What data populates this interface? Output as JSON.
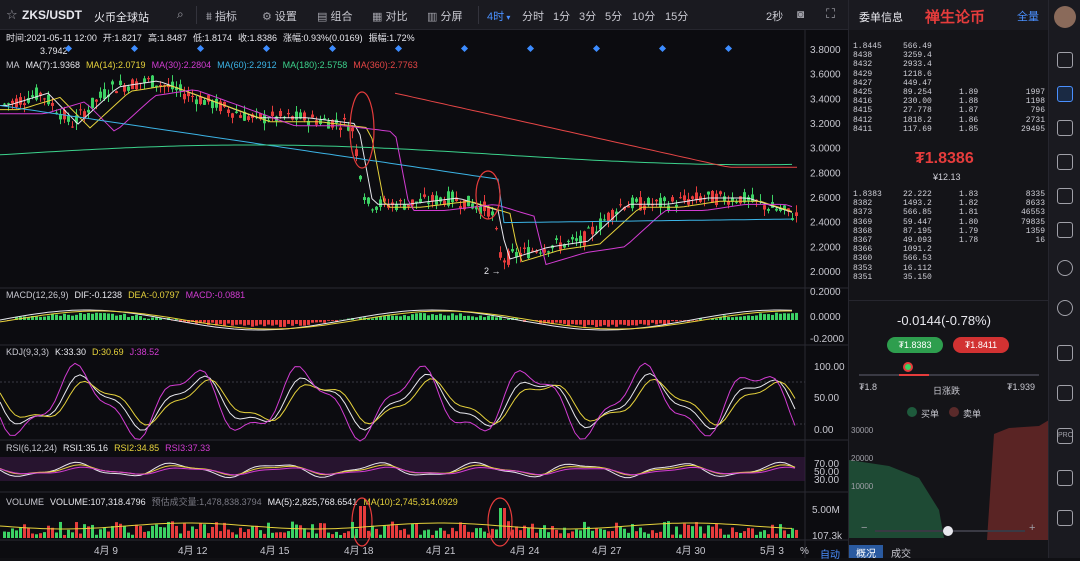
{
  "header": {
    "symbol": "ZKS/USDT",
    "exchange": "火币全球站",
    "tools": [
      "指标",
      "设置",
      "组合",
      "对比",
      "分屏"
    ],
    "timeframes": [
      "4时",
      "分时",
      "1分",
      "3分",
      "5分",
      "10分",
      "15分"
    ],
    "active_timeframe": "4时",
    "refresh": "2秒"
  },
  "info_bar": {
    "time": "时间:2021-05-11 12:00",
    "open": "开:1.8217",
    "high": "高:1.8487",
    "low": "低:1.8174",
    "close": "收:1.8386",
    "change": "涨幅:0.93%(0.0169)",
    "amplitude": "振幅:1.72%",
    "peak": "3.7942"
  },
  "ma_legend": [
    {
      "label": "MA",
      "color": "#c8c8d0"
    },
    {
      "label": "MA(7):1.9368",
      "color": "#e8e8ee"
    },
    {
      "label": "MA(14):2.0719",
      "color": "#e6d23c"
    },
    {
      "label": "MA(30):2.2804",
      "color": "#d23cd2"
    },
    {
      "label": "MA(60):2.2912",
      "color": "#3cb4e6"
    },
    {
      "label": "MA(180):2.5758",
      "color": "#3cd28c"
    },
    {
      "label": "MA(360):2.7763",
      "color": "#e64646"
    }
  ],
  "macd_legend": [
    {
      "label": "MACD(12,26,9)",
      "color": "#c8c8d0"
    },
    {
      "label": "DIF:-0.1238",
      "color": "#e8e8ee"
    },
    {
      "label": "DEA:-0.0797",
      "color": "#e6d23c"
    },
    {
      "label": "MACD:-0.0881",
      "color": "#d23cd2"
    }
  ],
  "kdj_legend": [
    {
      "label": "KDJ(9,3,3)",
      "color": "#c8c8d0"
    },
    {
      "label": "K:33.30",
      "color": "#e8e8ee"
    },
    {
      "label": "D:30.69",
      "color": "#e6d23c"
    },
    {
      "label": "J:38.52",
      "color": "#d23cd2"
    }
  ],
  "rsi_legend": [
    {
      "label": "RSI(6,12,24)",
      "color": "#c8c8d0"
    },
    {
      "label": "RSI1:35.16",
      "color": "#e8e8ee"
    },
    {
      "label": "RSI2:34.85",
      "color": "#e6d23c"
    },
    {
      "label": "RSI3:37.33",
      "color": "#d23cd2"
    }
  ],
  "vol_legend": [
    {
      "label": "VOLUME",
      "color": "#c8c8d0"
    },
    {
      "label": "VOLUME:107,318.4796",
      "color": "#e8e8ee"
    },
    {
      "label": "预估成交量:1,478,838.3794",
      "color": "#7a7a84"
    },
    {
      "label": "MA(5):2,825,768.6541",
      "color": "#e8e8ee"
    },
    {
      "label": "MA(10):2,745,314.0929",
      "color": "#e6d23c"
    }
  ],
  "price_axis": [
    "3.8000",
    "3.6000",
    "3.4000",
    "3.2000",
    "3.0000",
    "2.8000",
    "2.6000",
    "2.4000",
    "2.2000",
    "2.0000"
  ],
  "macd_axis": [
    "0.2000",
    "0.0000",
    "-0.2000"
  ],
  "kdj_axis": [
    "100.00",
    "50.00",
    "0.00"
  ],
  "rsi_axis": [
    "70.00",
    "50.00",
    "30.00"
  ],
  "vol_axis": [
    "5.00M",
    "107.3k"
  ],
  "date_axis": [
    "4月 9",
    "4月 12",
    "4月 15",
    "4月 18",
    "4月 21",
    "4月 24",
    "4月 27",
    "4月 30",
    "5月 3"
  ],
  "bottom_controls": [
    "%",
    "自动"
  ],
  "annotation": "2 →",
  "orderbook": {
    "title": "委单信息",
    "watermark": "禅生论币",
    "mode": "全量",
    "asks": [
      [
        "1.8445",
        "566.49",
        "",
        ""
      ],
      [
        "8438",
        "3259.4",
        "",
        ""
      ],
      [
        "8432",
        "2933.4",
        "",
        ""
      ],
      [
        "8429",
        "1218.6",
        "",
        ""
      ],
      [
        "8427",
        "449.47",
        "",
        ""
      ],
      [
        "8425",
        "89.254",
        "1.89",
        "1997"
      ],
      [
        "8416",
        "230.00",
        "1.88",
        "1198"
      ],
      [
        "8415",
        "27.778",
        "1.87",
        "796"
      ],
      [
        "8412",
        "1818.2",
        "1.86",
        "2731"
      ],
      [
        "8411",
        "117.69",
        "1.85",
        "29495"
      ]
    ],
    "last_price": "₮1.8386",
    "last_usd": "¥12.13",
    "bids": [
      [
        "1.8383",
        "22.222",
        "1.83",
        "8335"
      ],
      [
        "8382",
        "1493.2",
        "1.82",
        "8633"
      ],
      [
        "8373",
        "566.85",
        "1.81",
        "46553"
      ],
      [
        "8369",
        "59.447",
        "1.80",
        "79835"
      ],
      [
        "8368",
        "87.195",
        "1.79",
        "1359"
      ],
      [
        "8367",
        "49.093",
        "1.78",
        "16"
      ],
      [
        "8366",
        "1091.2",
        "",
        ""
      ],
      [
        "8360",
        "566.53",
        "",
        ""
      ],
      [
        "8353",
        "16.112",
        "",
        ""
      ],
      [
        "8351",
        "35.150",
        "",
        ""
      ]
    ],
    "change": "-0.0144(-0.78%)",
    "buy_price": "₮1.8383",
    "sell_price": "₮1.8411",
    "range_low": "₮1.8",
    "range_label": "日涨跌",
    "range_high": "₮1.939",
    "buy_label": "买单",
    "sell_label": "卖单",
    "depth_axis": [
      "30000",
      "20000",
      "10000"
    ],
    "tabs": [
      "概况",
      "成交"
    ]
  },
  "colors": {
    "up": "#3cd264",
    "down": "#e63c3c",
    "accent": "#4a90ff",
    "bg": "#0c0c10"
  }
}
